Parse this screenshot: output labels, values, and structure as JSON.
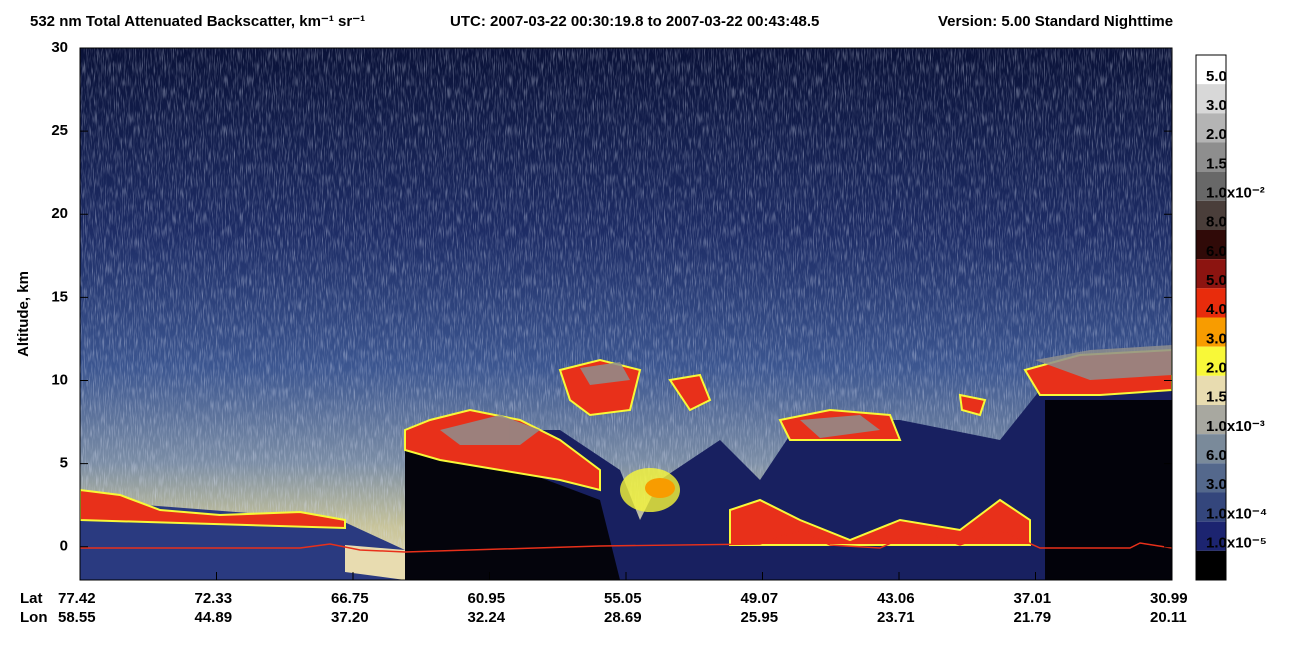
{
  "chart_data": {
    "type": "curtain",
    "title": "532 nm Total Attenuated Backscatter, km⁻¹ sr⁻¹",
    "time_range": "UTC:  2007-03-22 00:30:19.8  to  2007-03-22 00:43:48.5",
    "version": "Version: 5.00  Standard  Nighttime",
    "ylabel": "Altitude, km",
    "ylim": [
      -2,
      30
    ],
    "yticks": [
      0,
      5,
      10,
      15,
      20,
      25,
      30
    ],
    "x_rows": [
      {
        "name": "Lat",
        "labels": [
          "77.42",
          "72.33",
          "66.75",
          "60.95",
          "55.05",
          "49.07",
          "43.06",
          "37.01",
          "30.99"
        ]
      },
      {
        "name": "Lon",
        "labels": [
          "58.55",
          "44.89",
          "37.20",
          "32.24",
          "28.69",
          "25.95",
          "23.71",
          "21.79",
          "20.11"
        ]
      }
    ],
    "colorbar": {
      "colors": [
        "#ffffff",
        "#d8d8d8",
        "#b4b4b4",
        "#8e8e8e",
        "#686868",
        "#4a3e3a",
        "#300a08",
        "#8c1410",
        "#e82c0c",
        "#f89c00",
        "#f8f838",
        "#e8dcb0",
        "#a8a8a0",
        "#7a8a9a",
        "#54688c",
        "#34467c",
        "#1c2470",
        "#000000"
      ],
      "labels": [
        "5.0",
        "3.0",
        "2.0",
        "1.5",
        "1.0x10⁻²",
        "8.0",
        "6.0",
        "5.0",
        "4.0",
        "3.0",
        "2.0",
        "1.5",
        "1.0x10⁻³",
        "6.0",
        "3.0",
        "1.0x10⁻⁴",
        "1.0x10⁻⁵"
      ]
    }
  }
}
